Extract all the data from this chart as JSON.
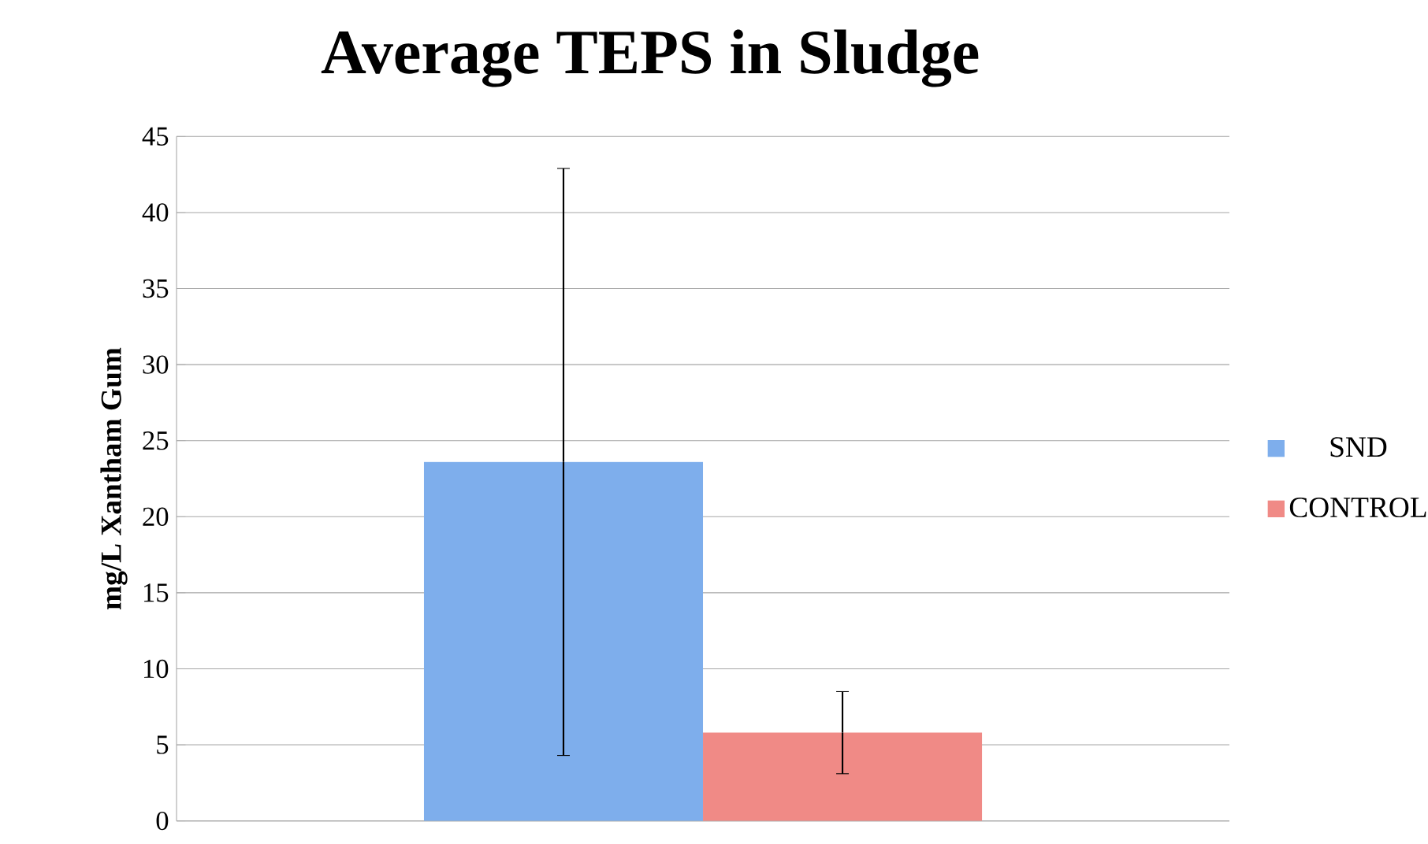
{
  "chart_data": {
    "type": "bar",
    "title": "Average TEPS in Sludge",
    "ylabel": "mg/L Xantham Gum",
    "categories": [
      null
    ],
    "series": [
      {
        "name": "SND",
        "color": "#7eaeec",
        "values": [
          23.6
        ],
        "errors": [
          19.3
        ]
      },
      {
        "name": "CONTROL",
        "color": "#f08a86",
        "values": [
          5.8
        ],
        "errors": [
          2.7
        ]
      }
    ],
    "ylim": [
      0,
      45
    ],
    "yticks": [
      0,
      5,
      10,
      15,
      20,
      25,
      30,
      35,
      40,
      45
    ],
    "grid": "y",
    "legend": "right"
  }
}
